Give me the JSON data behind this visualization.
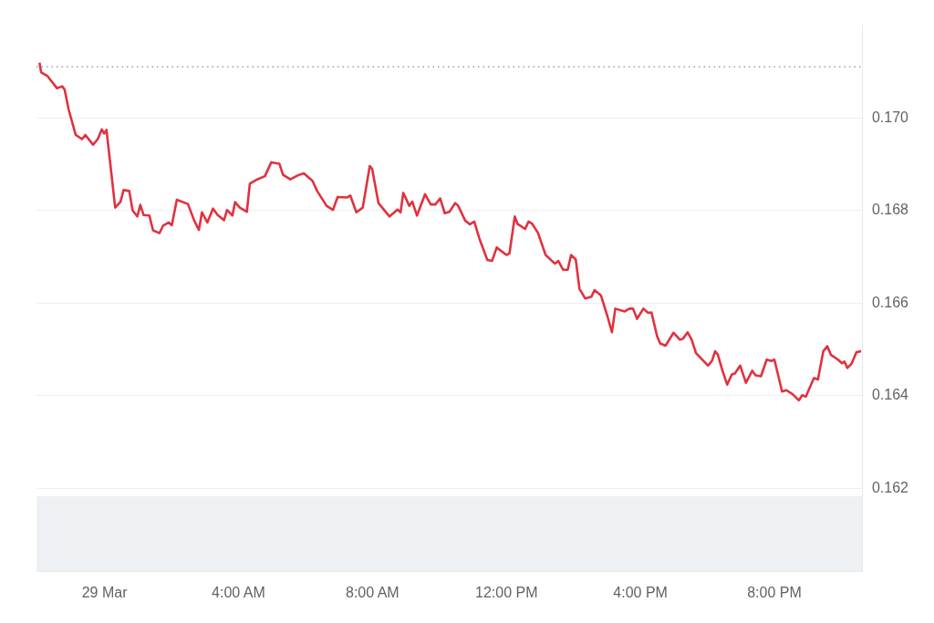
{
  "chart_data": {
    "type": "line",
    "x": [
      -1.94,
      -1.89,
      -1.7,
      -1.42,
      -1.26,
      -1.19,
      -1.07,
      -0.86,
      -0.67,
      -0.57,
      -0.34,
      -0.2,
      -0.08,
      -0.01,
      0.06,
      0.32,
      0.48,
      0.57,
      0.74,
      0.84,
      0.98,
      1.07,
      1.17,
      1.34,
      1.45,
      1.64,
      1.75,
      1.92,
      2.01,
      2.16,
      2.49,
      2.68,
      2.82,
      2.91,
      3.07,
      3.24,
      3.38,
      3.57,
      3.66,
      3.82,
      3.9,
      4.04,
      4.25,
      4.34,
      4.56,
      4.79,
      4.98,
      5.22,
      5.33,
      5.55,
      5.78,
      5.95,
      6.21,
      6.35,
      6.63,
      6.82,
      6.96,
      7.24,
      7.34,
      7.52,
      7.71,
      7.92,
      7.99,
      8.18,
      8.51,
      8.75,
      8.84,
      8.92,
      9.1,
      9.19,
      9.33,
      9.57,
      9.74,
      9.88,
      10.02,
      10.16,
      10.3,
      10.47,
      10.56,
      10.77,
      10.91,
      11.04,
      11.19,
      11.43,
      11.57,
      11.71,
      12.0,
      12.09,
      12.25,
      12.33,
      12.56,
      12.66,
      12.77,
      12.94,
      13.17,
      13.45,
      13.55,
      13.69,
      13.83,
      13.93,
      14.07,
      14.18,
      14.35,
      14.54,
      14.63,
      14.82,
      15.01,
      15.15,
      15.25,
      15.53,
      15.67,
      15.78,
      15.9,
      16.09,
      16.23,
      16.33,
      16.5,
      16.59,
      16.75,
      16.99,
      17.18,
      17.27,
      17.41,
      17.53,
      17.66,
      17.83,
      18.02,
      18.14,
      18.23,
      18.31,
      18.45,
      18.59,
      18.73,
      18.82,
      18.98,
      19.15,
      19.34,
      19.44,
      19.6,
      19.77,
      19.91,
      20.0,
      20.23,
      20.36,
      20.55,
      20.73,
      20.83,
      20.94,
      21.18,
      21.3,
      21.46,
      21.58,
      21.69,
      21.88,
      22.02,
      22.09,
      22.18,
      22.31,
      22.45,
      22.59
    ],
    "series": [
      {
        "color": "#e0323f",
        "values": [
          0.17119,
          0.17098,
          0.1709,
          0.17064,
          0.17068,
          0.17061,
          0.17018,
          0.16963,
          0.16954,
          0.16963,
          0.16942,
          0.16954,
          0.16975,
          0.16966,
          0.16974,
          0.16806,
          0.16819,
          0.16844,
          0.16842,
          0.168,
          0.16787,
          0.16812,
          0.1679,
          0.16789,
          0.16757,
          0.16751,
          0.16767,
          0.16774,
          0.16768,
          0.16823,
          0.16814,
          0.16778,
          0.16758,
          0.16796,
          0.16774,
          0.16804,
          0.1679,
          0.16779,
          0.16801,
          0.16789,
          0.16818,
          0.16806,
          0.16797,
          0.16858,
          0.16867,
          0.16874,
          0.16904,
          0.16901,
          0.16877,
          0.16867,
          0.16876,
          0.1688,
          0.16864,
          0.16842,
          0.1681,
          0.16801,
          0.16829,
          0.16828,
          0.16832,
          0.16796,
          0.16806,
          0.16896,
          0.1689,
          0.16816,
          0.16787,
          0.16802,
          0.16796,
          0.16838,
          0.1681,
          0.16819,
          0.16789,
          0.16835,
          0.16813,
          0.16813,
          0.16826,
          0.16794,
          0.16797,
          0.16816,
          0.1681,
          0.16778,
          0.1677,
          0.16776,
          0.1674,
          0.16693,
          0.16691,
          0.1672,
          0.16704,
          0.16707,
          0.16787,
          0.16771,
          0.1676,
          0.16776,
          0.16771,
          0.16752,
          0.16704,
          0.16685,
          0.16691,
          0.16672,
          0.16672,
          0.16704,
          0.16694,
          0.16631,
          0.1661,
          0.16614,
          0.16628,
          0.16617,
          0.16573,
          0.16537,
          0.16588,
          0.16582,
          0.16588,
          0.16588,
          0.16566,
          0.16588,
          0.16579,
          0.1658,
          0.16528,
          0.16513,
          0.16508,
          0.16536,
          0.16521,
          0.16523,
          0.16537,
          0.16521,
          0.16492,
          0.16479,
          0.16465,
          0.16476,
          0.16496,
          0.16489,
          0.16454,
          0.16424,
          0.16446,
          0.16448,
          0.16465,
          0.16428,
          0.16454,
          0.16444,
          0.16442,
          0.16478,
          0.16475,
          0.16478,
          0.16409,
          0.16412,
          0.16403,
          0.1639,
          0.16401,
          0.16398,
          0.16438,
          0.16435,
          0.16496,
          0.16507,
          0.16488,
          0.16479,
          0.1647,
          0.16474,
          0.1646,
          0.1647,
          0.16494,
          0.16496
        ]
      }
    ],
    "xlim": [
      -2.03,
      22.64
    ],
    "xticks": [
      {
        "value": 0,
        "label": "29 Mar"
      },
      {
        "value": 4,
        "label": "4:00 AM"
      },
      {
        "value": 8,
        "label": "8:00 AM"
      },
      {
        "value": 12,
        "label": "12:00 PM"
      },
      {
        "value": 16,
        "label": "4:00 PM"
      },
      {
        "value": 20,
        "label": "8:00 PM"
      }
    ],
    "ylim": [
      0.1602,
      0.172
    ],
    "yticks": [
      {
        "value": 0.162,
        "label": "0.162"
      },
      {
        "value": 0.164,
        "label": "0.164"
      },
      {
        "value": 0.166,
        "label": "0.166"
      },
      {
        "value": 0.168,
        "label": "0.168"
      },
      {
        "value": 0.17,
        "label": "0.170"
      }
    ],
    "ref_lines": [
      {
        "axis": "y",
        "value": 0.1711,
        "color": "#9aa0a6",
        "line_style": "dotted"
      }
    ],
    "grid": "y",
    "marker": "none",
    "line_style": "solid",
    "legend": false
  }
}
